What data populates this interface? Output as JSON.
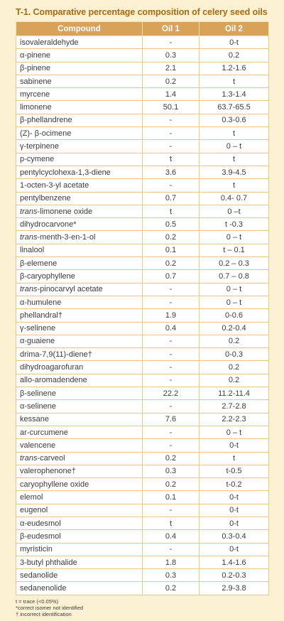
{
  "title": "T-1. Comparative percentage composition of celery seed oils",
  "columns": [
    "Compound",
    "Oil 1",
    "Oil 2"
  ],
  "rows": [
    {
      "compound": "isovaleraldehyde",
      "oil1": "-",
      "oil2": "0-t"
    },
    {
      "compound": "α-pinene",
      "oil1": "0.3",
      "oil2": "0.2"
    },
    {
      "compound": "β-pinene",
      "oil1": "2.1",
      "oil2": "1.2-1.6"
    },
    {
      "compound": "sabinene",
      "oil1": "0.2",
      "oil2": "t"
    },
    {
      "compound": "myrcene",
      "oil1": "1.4",
      "oil2": "1.3-1.4"
    },
    {
      "compound": "limonene",
      "oil1": "50.1",
      "oil2": "63.7-65.5"
    },
    {
      "compound": "β-phellandrene",
      "oil1": "-",
      "oil2": "0.3-0.6"
    },
    {
      "compound": "(Z)- β-ocimene",
      "oil1": "-",
      "oil2": "t"
    },
    {
      "compound": "γ-terpinene",
      "oil1": "-",
      "oil2": "0 – t"
    },
    {
      "compound": "p-cymene",
      "oil1": "t",
      "oil2": "t"
    },
    {
      "compound": "pentylcyclohexa-1,3-diene",
      "oil1": "3.6",
      "oil2": "3.9-4.5"
    },
    {
      "compound": "1-octen-3-yl acetate",
      "oil1": "-",
      "oil2": "t"
    },
    {
      "compound": "pentylbenzene",
      "oil1": "0.7",
      "oil2": "0.4- 0.7"
    },
    {
      "prefix": "trans",
      "compound": "-limonene oxide",
      "oil1": "t",
      "oil2": "0 –t"
    },
    {
      "compound": "dihydrocarvone*",
      "oil1": "0.5",
      "oil2": "t -0.3"
    },
    {
      "prefix": "trans",
      "compound": "-menth-3-en-1-ol",
      "oil1": "0.2",
      "oil2": "0 – t"
    },
    {
      "compound": "linalool",
      "oil1": "0.1",
      "oil2": "t – 0.1"
    },
    {
      "compound": "β-elemene",
      "oil1": "0.2",
      "oil2": "0.2 – 0.3"
    },
    {
      "compound": "β-caryophyllene",
      "oil1": "0.7",
      "oil2": "0.7 – 0.8"
    },
    {
      "prefix": "trans",
      "compound": "-pinocarvyl acetate",
      "oil1": "-",
      "oil2": "0 – t"
    },
    {
      "compound": "α-humulene",
      "oil1": "-",
      "oil2": "0 – t"
    },
    {
      "compound": "phellandral†",
      "oil1": "1.9",
      "oil2": "0-0.6"
    },
    {
      "compound": "γ-selinene",
      "oil1": "0.4",
      "oil2": "0.2-0.4"
    },
    {
      "compound": "α-guaiene",
      "oil1": "-",
      "oil2": "0.2"
    },
    {
      "compound": "drima-7,9(11)-diene†",
      "oil1": "-",
      "oil2": "0-0.3"
    },
    {
      "compound": "dihydroagarofuran",
      "oil1": "-",
      "oil2": "0.2"
    },
    {
      "compound": "allo-aromadendene",
      "oil1": "-",
      "oil2": "0.2"
    },
    {
      "compound": "β-selinene",
      "oil1": "22.2",
      "oil2": "11.2-11.4"
    },
    {
      "compound": "α-selinene",
      "oil1": "-",
      "oil2": "2.7-2.8"
    },
    {
      "compound": "kessane",
      "oil1": "7.6",
      "oil2": "2.2-2.3"
    },
    {
      "compound": "ar-curcumene",
      "oil1": "-",
      "oil2": "0 – t"
    },
    {
      "compound": "valencene",
      "oil1": "-",
      "oil2": "0-t"
    },
    {
      "prefix": "trans",
      "compound": "-carveol",
      "oil1": "0.2",
      "oil2": "t"
    },
    {
      "compound": "valerophenone†",
      "oil1": "0.3",
      "oil2": "t-0.5"
    },
    {
      "compound": "caryophyllene oxide",
      "oil1": "0.2",
      "oil2": "t-0.2"
    },
    {
      "compound": "elemol",
      "oil1": "0.1",
      "oil2": "0-t"
    },
    {
      "compound": "eugenol",
      "oil1": "-",
      "oil2": "0-t"
    },
    {
      "compound": "α-eudesmol",
      "oil1": "t",
      "oil2": "0-t"
    },
    {
      "compound": "β-eudesmol",
      "oil1": "0.4",
      "oil2": "0.3-0.4"
    },
    {
      "compound": "myristicin",
      "oil1": "-",
      "oil2": "0-t"
    },
    {
      "compound": "3-butyl phthalide",
      "oil1": "1.8",
      "oil2": "1.4-1.6"
    },
    {
      "compound": "sedanolide",
      "oil1": "0.3",
      "oil2": "0.2-0.3"
    },
    {
      "compound": "sedanenolide",
      "oil1": "0.2",
      "oil2": "2.9-3.8"
    }
  ],
  "footnotes": [
    "t = trace (<0.05%)",
    "*correct isomer not identified",
    "† incorrect identification"
  ]
}
